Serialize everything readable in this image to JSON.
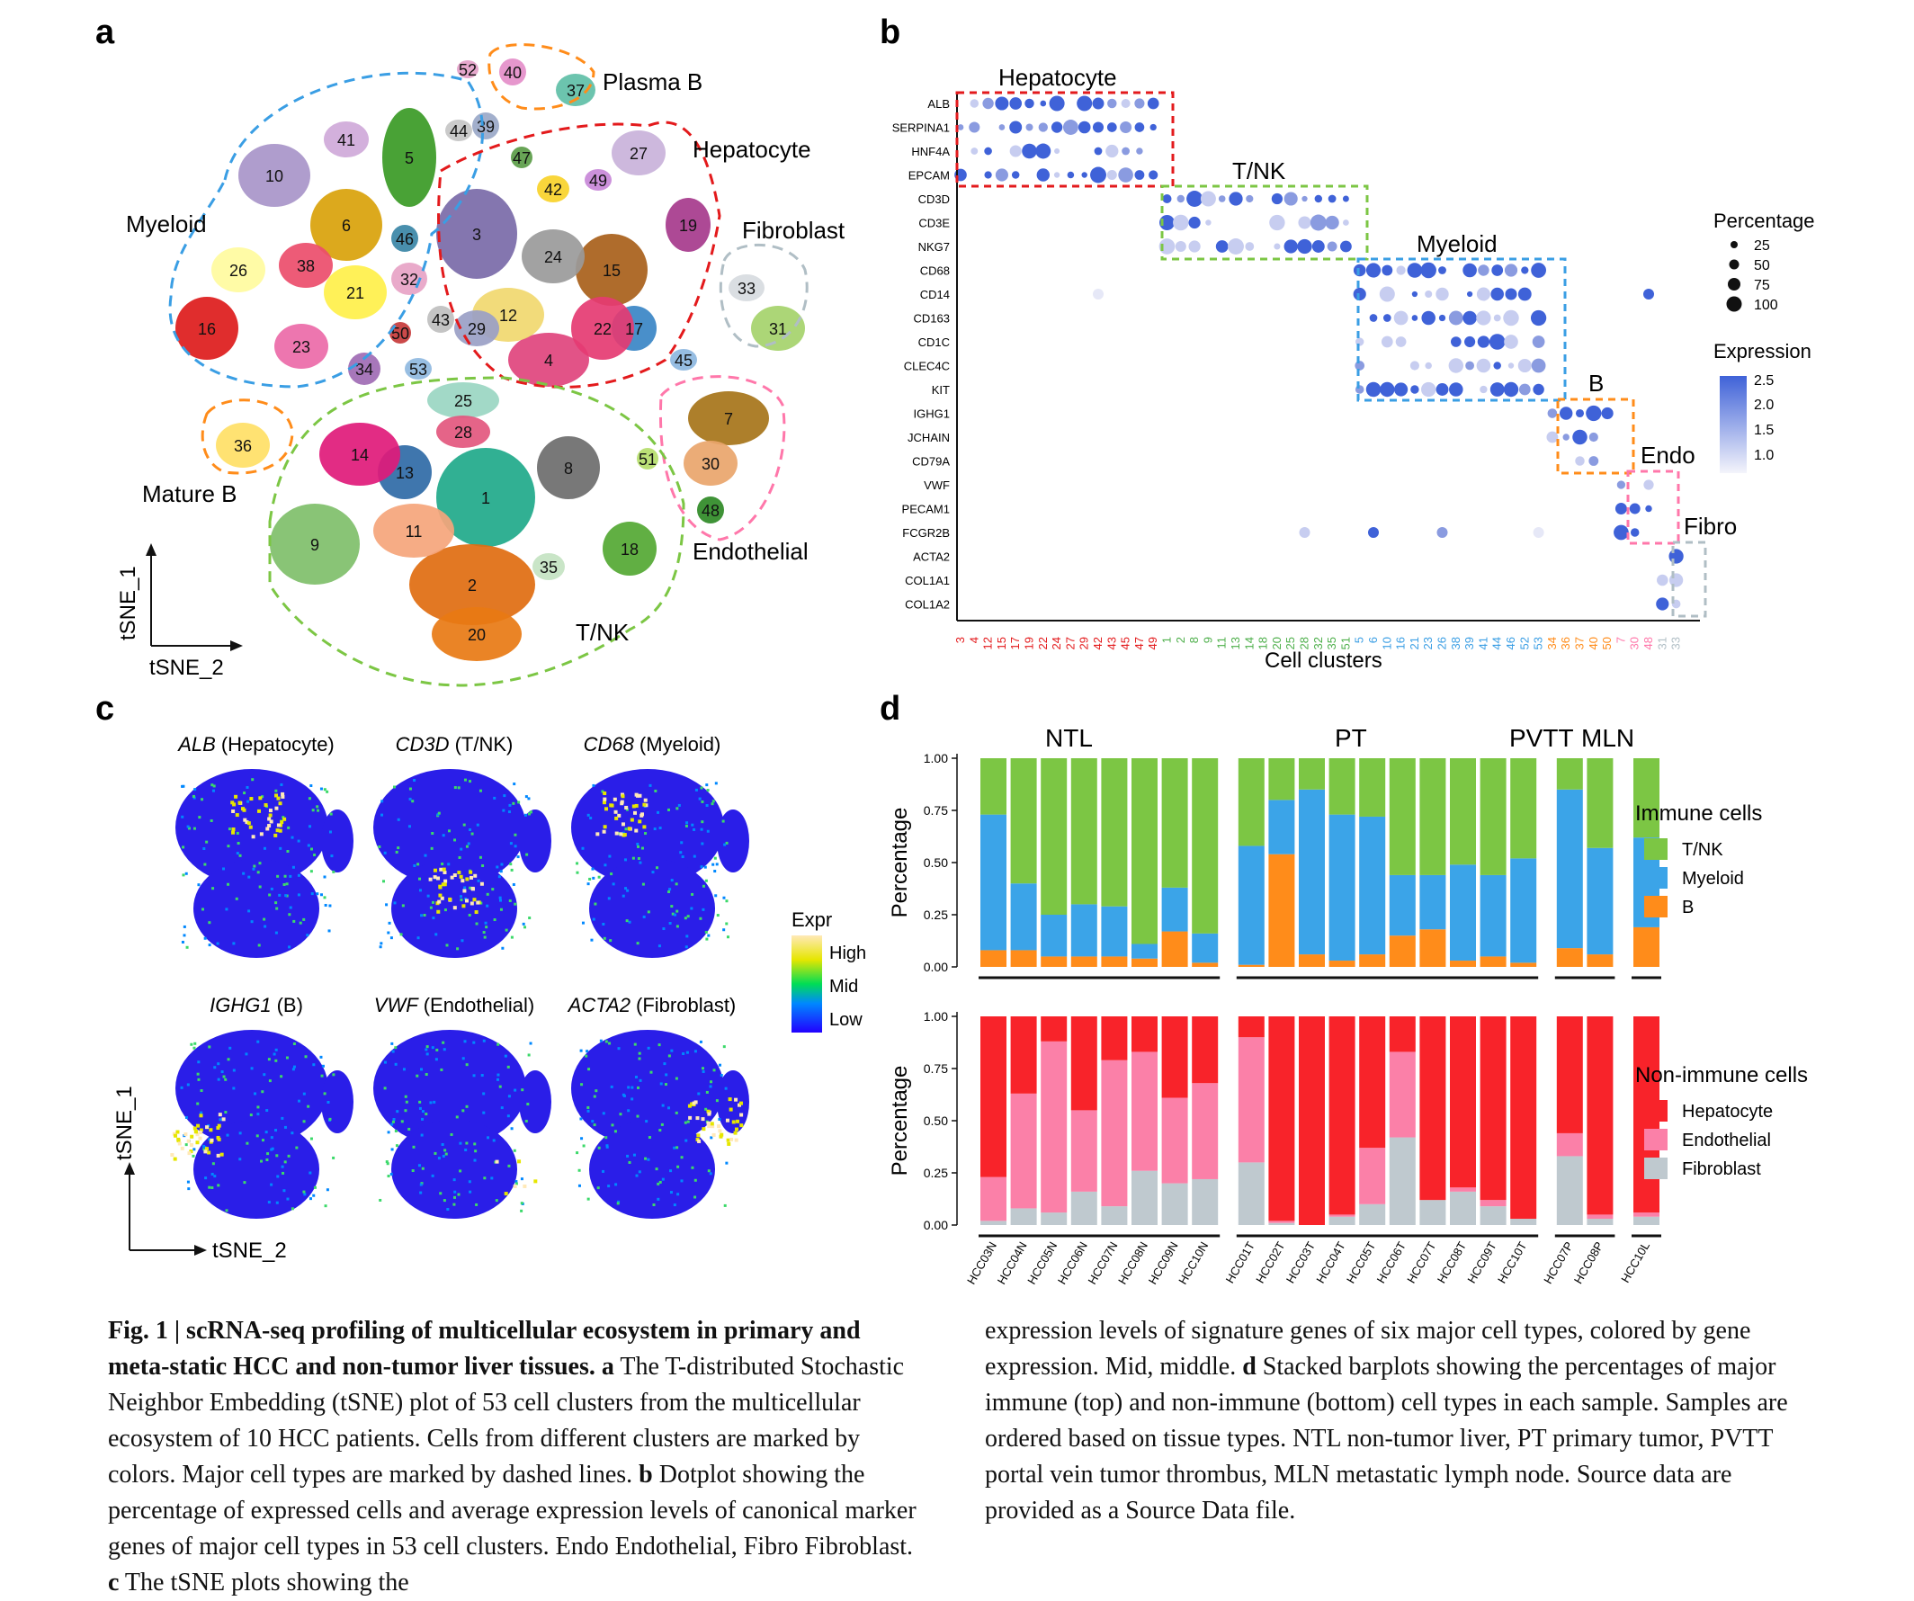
{
  "panels": {
    "a": {
      "letter": "a",
      "axis_x": "tSNE_2",
      "axis_y": "tSNE_1",
      "cell_type_labels": [
        "Plasma B",
        "Hepatocyte",
        "Fibroblast",
        "Myeloid",
        "Mature B",
        "Endothelial",
        "T/NK"
      ],
      "cluster_numbers": [
        "1",
        "2",
        "3",
        "4",
        "5",
        "6",
        "7",
        "8",
        "9",
        "10",
        "11",
        "12",
        "13",
        "14",
        "15",
        "16",
        "17",
        "18",
        "19",
        "20",
        "21",
        "22",
        "23",
        "24",
        "25",
        "26",
        "27",
        "28",
        "29",
        "30",
        "31",
        "32",
        "33",
        "34",
        "35",
        "36",
        "37",
        "38",
        "39",
        "40",
        "41",
        "42",
        "43",
        "44",
        "45",
        "46",
        "47",
        "48",
        "49",
        "50",
        "51",
        "52",
        "53"
      ]
    },
    "b": {
      "letter": "b",
      "genes": [
        "ALB",
        "SERPINA1",
        "HNF4A",
        "EPCAM",
        "CD3D",
        "CD3E",
        "NKG7",
        "CD68",
        "CD14",
        "CD163",
        "CD1C",
        "CLEC4C",
        "KIT",
        "IGHG1",
        "JCHAIN",
        "CD79A",
        "VWF",
        "PECAM1",
        "FCGR2B",
        "ACTA2",
        "COL1A1",
        "COL1A2"
      ],
      "clusters": [
        "3",
        "4",
        "12",
        "15",
        "17",
        "19",
        "22",
        "24",
        "27",
        "29",
        "42",
        "43",
        "45",
        "47",
        "49",
        "1",
        "2",
        "8",
        "9",
        "11",
        "13",
        "14",
        "18",
        "20",
        "25",
        "28",
        "32",
        "35",
        "51",
        "5",
        "6",
        "10",
        "16",
        "21",
        "23",
        "26",
        "38",
        "39",
        "41",
        "44",
        "46",
        "52",
        "53",
        "34",
        "36",
        "37",
        "40",
        "50",
        "7",
        "30",
        "48",
        "31",
        "33"
      ],
      "cluster_group_colors": [
        "#e31a1c",
        "#e31a1c",
        "#e31a1c",
        "#e31a1c",
        "#e31a1c",
        "#e31a1c",
        "#e31a1c",
        "#e31a1c",
        "#e31a1c",
        "#e31a1c",
        "#e31a1c",
        "#e31a1c",
        "#e31a1c",
        "#e31a1c",
        "#e31a1c",
        "#4daf4a",
        "#4daf4a",
        "#4daf4a",
        "#4daf4a",
        "#4daf4a",
        "#4daf4a",
        "#4daf4a",
        "#4daf4a",
        "#4daf4a",
        "#4daf4a",
        "#4daf4a",
        "#4daf4a",
        "#4daf4a",
        "#4daf4a",
        "#3a9ee4",
        "#3a9ee4",
        "#3a9ee4",
        "#3a9ee4",
        "#3a9ee4",
        "#3a9ee4",
        "#3a9ee4",
        "#3a9ee4",
        "#3a9ee4",
        "#3a9ee4",
        "#3a9ee4",
        "#3a9ee4",
        "#3a9ee4",
        "#3a9ee4",
        "#ff8c1a",
        "#ff8c1a",
        "#ff8c1a",
        "#ff8c1a",
        "#ff8c1a",
        "#ff77aa",
        "#ff77aa",
        "#ff77aa",
        "#b0bec5",
        "#b0bec5"
      ],
      "box_labels": [
        "Hepatocyte",
        "T/NK",
        "Myeloid",
        "B",
        "Endo",
        "Fibro"
      ],
      "xlabel": "Cell clusters",
      "legend_pct_title": "Percentage",
      "legend_pct_values": [
        "25",
        "50",
        "75",
        "100"
      ],
      "legend_expr_title": "Expression",
      "legend_expr_values": [
        "2.5",
        "2.0",
        "1.5",
        "1.0"
      ]
    },
    "c": {
      "letter": "c",
      "plots": [
        {
          "gene": "ALB",
          "type": "(Hepatocyte)"
        },
        {
          "gene": "CD3D",
          "type": "(T/NK)"
        },
        {
          "gene": "CD68",
          "type": "(Myeloid)"
        },
        {
          "gene": "IGHG1",
          "type": "(B)"
        },
        {
          "gene": "VWF",
          "type": "(Endothelial)"
        },
        {
          "gene": "ACTA2",
          "type": "(Fibroblast)"
        }
      ],
      "legend_title": "Expr",
      "legend_levels": [
        "High",
        "Mid",
        "Low"
      ],
      "axis_x": "tSNE_2",
      "axis_y": "tSNE_1"
    },
    "d": {
      "letter": "d",
      "group_labels": [
        "NTL",
        "PT",
        "PVTT",
        "MLN"
      ]
    }
  },
  "chart_data": [
    {
      "type": "bar",
      "stacked": true,
      "panel": "d-top",
      "ylabel": "Percentage",
      "legend_title": "Immune cells",
      "legend_placement": "right",
      "yticks": [
        "0.00",
        "0.25",
        "0.50",
        "0.75",
        "1.00"
      ],
      "ylim": [
        0,
        1
      ],
      "groups": [
        {
          "name": "NTL",
          "samples": [
            "HCC03N",
            "HCC04N",
            "HCC05N",
            "HCC06N",
            "HCC07N",
            "HCC08N",
            "HCC09N",
            "HCC10N"
          ]
        },
        {
          "name": "PT",
          "samples": [
            "HCC01T",
            "HCC02T",
            "HCC03T",
            "HCC04T",
            "HCC05T",
            "HCC06T",
            "HCC07T",
            "HCC08T",
            "HCC09T",
            "HCC10T"
          ]
        },
        {
          "name": "PVTT",
          "samples": [
            "HCC07P",
            "HCC08P"
          ]
        },
        {
          "name": "MLN",
          "samples": [
            "HCC10L"
          ]
        }
      ],
      "categories": [
        "HCC03N",
        "HCC04N",
        "HCC05N",
        "HCC06N",
        "HCC07N",
        "HCC08N",
        "HCC09N",
        "HCC10N",
        "HCC01T",
        "HCC02T",
        "HCC03T",
        "HCC04T",
        "HCC05T",
        "HCC06T",
        "HCC07T",
        "HCC08T",
        "HCC09T",
        "HCC10T",
        "HCC07P",
        "HCC08P",
        "HCC10L"
      ],
      "series": [
        {
          "name": "B",
          "color": "#ff8c1a",
          "values": [
            0.08,
            0.08,
            0.05,
            0.05,
            0.05,
            0.04,
            0.17,
            0.02,
            0.01,
            0.54,
            0.06,
            0.03,
            0.06,
            0.15,
            0.18,
            0.03,
            0.05,
            0.02,
            0.09,
            0.06,
            0.19
          ]
        },
        {
          "name": "Myeloid",
          "color": "#3ba4e8",
          "values": [
            0.65,
            0.32,
            0.2,
            0.25,
            0.24,
            0.07,
            0.21,
            0.14,
            0.57,
            0.26,
            0.79,
            0.7,
            0.66,
            0.29,
            0.26,
            0.46,
            0.39,
            0.5,
            0.76,
            0.51,
            0.43
          ]
        },
        {
          "name": "T/NK",
          "color": "#7cc644",
          "values": [
            0.27,
            0.6,
            0.75,
            0.7,
            0.71,
            0.89,
            0.62,
            0.84,
            0.42,
            0.2,
            0.15,
            0.27,
            0.28,
            0.56,
            0.56,
            0.51,
            0.56,
            0.48,
            0.15,
            0.43,
            0.38
          ]
        }
      ]
    },
    {
      "type": "bar",
      "stacked": true,
      "panel": "d-bottom",
      "ylabel": "Percentage",
      "legend_title": "Non-immune cells",
      "legend_placement": "right",
      "yticks": [
        "0.00",
        "0.25",
        "0.50",
        "0.75",
        "1.00"
      ],
      "ylim": [
        0,
        1
      ],
      "categories": [
        "HCC03N",
        "HCC04N",
        "HCC05N",
        "HCC06N",
        "HCC07N",
        "HCC08N",
        "HCC09N",
        "HCC10N",
        "HCC01T",
        "HCC02T",
        "HCC03T",
        "HCC04T",
        "HCC05T",
        "HCC06T",
        "HCC07T",
        "HCC08T",
        "HCC09T",
        "HCC10T",
        "HCC07P",
        "HCC08P",
        "HCC10L"
      ],
      "series": [
        {
          "name": "Fibroblast",
          "color": "#bfc9cf",
          "values": [
            0.02,
            0.08,
            0.06,
            0.16,
            0.09,
            0.26,
            0.2,
            0.22,
            0.3,
            0.01,
            0.0,
            0.04,
            0.1,
            0.42,
            0.12,
            0.16,
            0.09,
            0.03,
            0.33,
            0.03,
            0.04
          ]
        },
        {
          "name": "Endothelial",
          "color": "#fb80a8",
          "values": [
            0.21,
            0.55,
            0.82,
            0.39,
            0.7,
            0.57,
            0.41,
            0.46,
            0.6,
            0.01,
            0.0,
            0.01,
            0.27,
            0.41,
            0.0,
            0.02,
            0.03,
            0.0,
            0.11,
            0.02,
            0.02
          ]
        },
        {
          "name": "Hepatocyte",
          "color": "#f8232a",
          "values": [
            0.77,
            0.37,
            0.12,
            0.45,
            0.21,
            0.17,
            0.39,
            0.32,
            0.1,
            0.98,
            1.0,
            0.95,
            0.63,
            0.17,
            0.88,
            0.82,
            0.88,
            0.97,
            0.56,
            0.95,
            0.94
          ]
        }
      ]
    }
  ],
  "caption": {
    "left_parts": [
      {
        "text": "Fig. 1 | scRNA-seq profiling of multicellular ecosystem in primary and meta-",
        "bold": true
      },
      {
        "text": "static HCC and non-tumor liver tissues.",
        "bold": true
      },
      {
        "text": " a",
        "bold": true
      },
      {
        "text": " The T-distributed Stochastic Neighbor Embedding (tSNE) plot of 53 cell clusters from the multicellular ecosystem of 10 HCC patients. Cells from different clusters are marked by colors. Major cell types are marked by dashed lines. ",
        "bold": false
      },
      {
        "text": "b",
        "bold": true
      },
      {
        "text": " Dotplot showing the percentage of expressed cells and average expression levels of canonical marker genes of major cell types in 53 cell clusters. Endo Endothelial, Fibro Fibroblast. ",
        "bold": false
      },
      {
        "text": "c",
        "bold": true
      },
      {
        "text": " The tSNE plots showing the",
        "bold": false
      }
    ],
    "right_parts": [
      {
        "text": "expression levels of signature genes of six major cell types, colored by gene expression. Mid, middle. ",
        "bold": false
      },
      {
        "text": "d",
        "bold": true
      },
      {
        "text": " Stacked barplots showing the percentages of major immune (top) and non-immune (bottom) cell types in each sample. Samples are ordered based on tissue types. NTL non-tumor liver, PT primary tumor, PVTT portal vein tumor thrombus, MLN metastatic lymph node. Source data are provided as a Source Data file.",
        "bold": false
      }
    ]
  }
}
